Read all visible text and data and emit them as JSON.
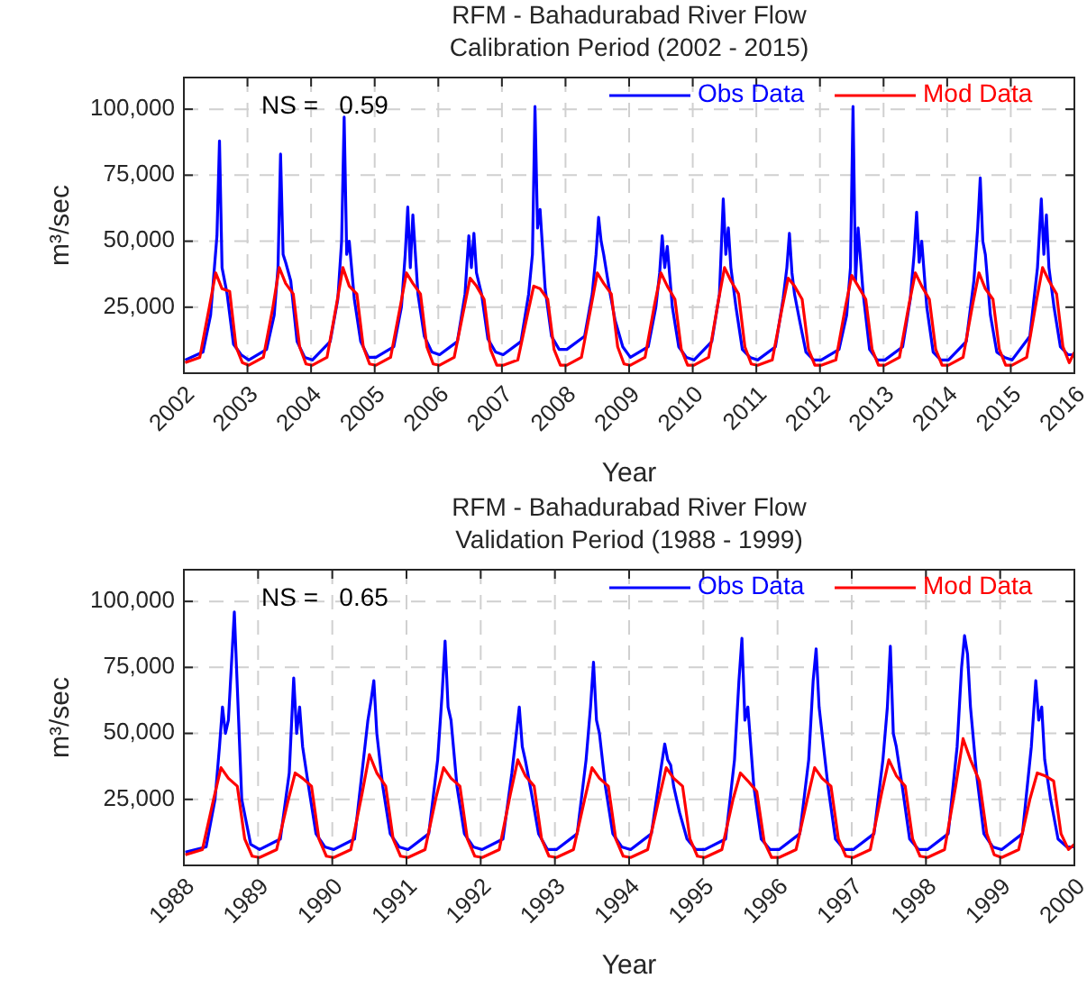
{
  "chart_data": [
    {
      "type": "line",
      "title": "RFM - Bahadurabad River Flow",
      "subtitle": "Calibration Period (2002 - 2015)",
      "xlabel": "Year",
      "ylabel": "m³/sec",
      "annotations": [
        "NS =   0.59"
      ],
      "xlim": [
        2002,
        2016
      ],
      "xticks": [
        2002,
        2003,
        2004,
        2005,
        2006,
        2007,
        2008,
        2009,
        2010,
        2011,
        2012,
        2013,
        2014,
        2015,
        2016
      ],
      "ylim": [
        0,
        112000
      ],
      "yticks": [
        {
          "value": 25000,
          "label": "25,000"
        },
        {
          "value": 50000,
          "label": "50,000"
        },
        {
          "value": 75000,
          "label": "75,000"
        },
        {
          "value": 100000,
          "label": "100,000"
        }
      ],
      "grid": true,
      "legend": "top right",
      "line_style": "solid",
      "series": [
        {
          "name": "Obs Data",
          "color": "#0000ff",
          "x": [
            2002.02,
            2002.3,
            2002.42,
            2002.48,
            2002.52,
            2002.56,
            2002.6,
            2002.68,
            2002.78,
            2002.9,
            2003.02,
            2003.3,
            2003.42,
            2003.48,
            2003.52,
            2003.56,
            2003.6,
            2003.68,
            2003.78,
            2003.9,
            2004.02,
            2004.3,
            2004.42,
            2004.48,
            2004.52,
            2004.56,
            2004.6,
            2004.68,
            2004.78,
            2004.9,
            2005.02,
            2005.3,
            2005.42,
            2005.48,
            2005.52,
            2005.56,
            2005.6,
            2005.68,
            2005.78,
            2005.9,
            2006.02,
            2006.3,
            2006.42,
            2006.48,
            2006.52,
            2006.56,
            2006.6,
            2006.68,
            2006.78,
            2006.9,
            2007.02,
            2007.3,
            2007.42,
            2007.48,
            2007.52,
            2007.56,
            2007.6,
            2007.68,
            2007.78,
            2007.9,
            2008.02,
            2008.3,
            2008.42,
            2008.48,
            2008.52,
            2008.56,
            2008.6,
            2008.68,
            2008.78,
            2008.9,
            2009.02,
            2009.3,
            2009.42,
            2009.48,
            2009.52,
            2009.56,
            2009.6,
            2009.68,
            2009.78,
            2009.9,
            2010.02,
            2010.3,
            2010.42,
            2010.48,
            2010.52,
            2010.56,
            2010.6,
            2010.68,
            2010.78,
            2010.9,
            2011.02,
            2011.3,
            2011.42,
            2011.48,
            2011.52,
            2011.56,
            2011.6,
            2011.68,
            2011.78,
            2011.9,
            2012.02,
            2012.3,
            2012.42,
            2012.48,
            2012.52,
            2012.56,
            2012.6,
            2012.68,
            2012.78,
            2012.9,
            2013.02,
            2013.3,
            2013.42,
            2013.48,
            2013.52,
            2013.56,
            2013.6,
            2013.68,
            2013.78,
            2013.9,
            2014.02,
            2014.3,
            2014.42,
            2014.48,
            2014.52,
            2014.56,
            2014.6,
            2014.68,
            2014.78,
            2014.9,
            2015.02,
            2015.3,
            2015.42,
            2015.48,
            2015.52,
            2015.56,
            2015.6,
            2015.68,
            2015.78,
            2015.9,
            2016
          ],
          "values": [
            5000,
            8000,
            22000,
            40000,
            52000,
            88000,
            40000,
            30000,
            11000,
            7000,
            5000,
            9000,
            22000,
            40000,
            83000,
            45000,
            42000,
            35000,
            12000,
            6000,
            5000,
            12000,
            28000,
            50000,
            97000,
            45000,
            50000,
            28000,
            12000,
            6000,
            6000,
            10000,
            25000,
            45000,
            63000,
            40000,
            60000,
            30000,
            14000,
            8000,
            7000,
            12000,
            30000,
            52000,
            40000,
            53000,
            38000,
            30000,
            13000,
            8000,
            7000,
            12000,
            30000,
            45000,
            101000,
            55000,
            62000,
            32000,
            14000,
            9000,
            9000,
            14000,
            30000,
            45000,
            59000,
            50000,
            45000,
            33000,
            20000,
            10000,
            6000,
            10000,
            25000,
            38000,
            52000,
            40000,
            48000,
            25000,
            10000,
            6000,
            5000,
            12000,
            30000,
            66000,
            45000,
            55000,
            40000,
            25000,
            9000,
            6000,
            5000,
            10000,
            28000,
            40000,
            53000,
            38000,
            30000,
            20000,
            8000,
            5000,
            5000,
            9000,
            22000,
            40000,
            101000,
            35000,
            55000,
            30000,
            9000,
            5000,
            5000,
            10000,
            28000,
            45000,
            61000,
            42000,
            50000,
            25000,
            8000,
            5000,
            5000,
            12000,
            35000,
            55000,
            74000,
            50000,
            45000,
            22000,
            8000,
            6000,
            5000,
            14000,
            40000,
            66000,
            45000,
            60000,
            40000,
            25000,
            10000,
            7000,
            7000
          ]
        },
        {
          "name": "Mod Data",
          "color": "#ff0000",
          "x": [
            2002.02,
            2002.25,
            2002.4,
            2002.5,
            2002.6,
            2002.72,
            2002.82,
            2002.92,
            2003.02,
            2003.25,
            2003.4,
            2003.5,
            2003.6,
            2003.72,
            2003.82,
            2003.92,
            2004.02,
            2004.25,
            2004.4,
            2004.5,
            2004.6,
            2004.72,
            2004.82,
            2004.92,
            2005.02,
            2005.25,
            2005.4,
            2005.5,
            2005.6,
            2005.72,
            2005.82,
            2005.92,
            2006.02,
            2006.25,
            2006.4,
            2006.5,
            2006.6,
            2006.72,
            2006.82,
            2006.92,
            2007.02,
            2007.25,
            2007.4,
            2007.5,
            2007.6,
            2007.72,
            2007.82,
            2007.92,
            2008.02,
            2008.25,
            2008.4,
            2008.5,
            2008.6,
            2008.72,
            2008.82,
            2008.92,
            2009.02,
            2009.25,
            2009.4,
            2009.5,
            2009.6,
            2009.72,
            2009.82,
            2009.92,
            2010.02,
            2010.25,
            2010.4,
            2010.5,
            2010.6,
            2010.72,
            2010.82,
            2010.92,
            2011.02,
            2011.25,
            2011.4,
            2011.5,
            2011.6,
            2011.72,
            2011.82,
            2011.92,
            2012.02,
            2012.25,
            2012.4,
            2012.5,
            2012.6,
            2012.72,
            2012.82,
            2012.92,
            2013.02,
            2013.25,
            2013.4,
            2013.5,
            2013.6,
            2013.72,
            2013.82,
            2013.92,
            2014.02,
            2014.25,
            2014.4,
            2014.5,
            2014.6,
            2014.72,
            2014.82,
            2014.92,
            2015.02,
            2015.25,
            2015.4,
            2015.5,
            2015.6,
            2015.72,
            2015.82,
            2015.92,
            2016
          ],
          "values": [
            4000,
            6000,
            25000,
            38000,
            32000,
            31000,
            10000,
            4000,
            3000,
            6000,
            25000,
            40000,
            34000,
            30000,
            10000,
            3500,
            3000,
            6000,
            26000,
            40000,
            33000,
            30000,
            10000,
            3500,
            3000,
            6000,
            25000,
            38000,
            34000,
            30000,
            10000,
            3500,
            3000,
            6000,
            24000,
            36000,
            33000,
            28000,
            9000,
            3000,
            3000,
            5000,
            22000,
            33000,
            32000,
            28000,
            9000,
            3000,
            3000,
            6000,
            25000,
            38000,
            34000,
            30000,
            10000,
            3500,
            3000,
            6000,
            26000,
            38000,
            33000,
            28000,
            9000,
            3000,
            3000,
            6000,
            27000,
            40000,
            35000,
            30000,
            10000,
            3500,
            3000,
            5000,
            24000,
            36000,
            33000,
            28000,
            9000,
            3000,
            3000,
            5000,
            25000,
            37000,
            33000,
            28000,
            9000,
            3000,
            3000,
            6000,
            26000,
            38000,
            33000,
            28000,
            9000,
            3000,
            3000,
            6000,
            26000,
            38000,
            32000,
            28000,
            9000,
            3000,
            3000,
            6000,
            27000,
            40000,
            35000,
            30000,
            10000,
            4000,
            8000
          ]
        }
      ]
    },
    {
      "type": "line",
      "title": "RFM - Bahadurabad River Flow",
      "subtitle": "Validation Period (1988 - 1999)",
      "xlabel": "Year",
      "ylabel": "m³/sec",
      "annotations": [
        "NS =   0.65"
      ],
      "xlim": [
        1988,
        2000
      ],
      "xticks": [
        1988,
        1989,
        1990,
        1991,
        1992,
        1993,
        1994,
        1995,
        1996,
        1997,
        1998,
        1999,
        2000
      ],
      "ylim": [
        0,
        112000
      ],
      "yticks": [
        {
          "value": 25000,
          "label": "25,000"
        },
        {
          "value": 50000,
          "label": "50,000"
        },
        {
          "value": 75000,
          "label": "75,000"
        },
        {
          "value": 100000,
          "label": "100,000"
        }
      ],
      "grid": true,
      "legend": "top right",
      "line_style": "solid",
      "series": [
        {
          "name": "Obs Data",
          "color": "#0000ff",
          "x": [
            1988.02,
            1988.3,
            1988.42,
            1988.48,
            1988.52,
            1988.56,
            1988.6,
            1988.68,
            1988.78,
            1988.9,
            1989.02,
            1989.3,
            1989.42,
            1989.48,
            1989.52,
            1989.56,
            1989.6,
            1989.68,
            1989.78,
            1989.9,
            1990.02,
            1990.3,
            1990.42,
            1990.48,
            1990.52,
            1990.56,
            1990.6,
            1990.68,
            1990.78,
            1990.9,
            1991.02,
            1991.3,
            1991.42,
            1991.48,
            1991.52,
            1991.56,
            1991.6,
            1991.68,
            1991.78,
            1991.9,
            1992.02,
            1992.3,
            1992.42,
            1992.48,
            1992.52,
            1992.56,
            1992.6,
            1992.68,
            1992.78,
            1992.9,
            1993.02,
            1993.3,
            1993.42,
            1993.48,
            1993.52,
            1993.56,
            1993.6,
            1993.68,
            1993.78,
            1993.9,
            1994.02,
            1994.3,
            1994.42,
            1994.48,
            1994.52,
            1994.56,
            1994.6,
            1994.68,
            1994.78,
            1994.9,
            1995.02,
            1995.3,
            1995.42,
            1995.48,
            1995.52,
            1995.56,
            1995.6,
            1995.68,
            1995.78,
            1995.9,
            1996.02,
            1996.3,
            1996.42,
            1996.48,
            1996.52,
            1996.56,
            1996.6,
            1996.68,
            1996.78,
            1996.9,
            1997.02,
            1997.3,
            1997.42,
            1997.48,
            1997.52,
            1997.56,
            1997.6,
            1997.68,
            1997.78,
            1997.9,
            1998.02,
            1998.3,
            1998.42,
            1998.48,
            1998.52,
            1998.56,
            1998.6,
            1998.68,
            1998.78,
            1998.9,
            1999.02,
            1999.3,
            1999.42,
            1999.48,
            1999.52,
            1999.56,
            1999.6,
            1999.68,
            1999.78,
            1999.9,
            2000
          ],
          "values": [
            5000,
            7000,
            25000,
            45000,
            60000,
            50000,
            55000,
            96000,
            25000,
            8000,
            6000,
            10000,
            35000,
            71000,
            50000,
            60000,
            45000,
            30000,
            12000,
            7000,
            6000,
            10000,
            40000,
            55000,
            62000,
            70000,
            50000,
            30000,
            12000,
            7000,
            6000,
            12000,
            40000,
            65000,
            85000,
            60000,
            55000,
            30000,
            12000,
            7000,
            6000,
            10000,
            35000,
            50000,
            60000,
            45000,
            40000,
            28000,
            12000,
            6000,
            6000,
            12000,
            40000,
            60000,
            77000,
            55000,
            50000,
            30000,
            12000,
            7000,
            6000,
            12000,
            35000,
            46000,
            40000,
            38000,
            30000,
            20000,
            10000,
            6000,
            6000,
            10000,
            40000,
            70000,
            86000,
            55000,
            60000,
            30000,
            10000,
            6000,
            6000,
            12000,
            40000,
            70000,
            82000,
            60000,
            50000,
            30000,
            10000,
            6000,
            6000,
            12000,
            40000,
            60000,
            83000,
            50000,
            45000,
            30000,
            10000,
            6000,
            6000,
            12000,
            45000,
            75000,
            87000,
            80000,
            60000,
            35000,
            12000,
            7000,
            6000,
            12000,
            45000,
            70000,
            55000,
            60000,
            40000,
            25000,
            10000,
            7000,
            7000
          ]
        },
        {
          "name": "Mod Data",
          "color": "#ff0000",
          "x": [
            1988.02,
            1988.25,
            1988.4,
            1988.5,
            1988.6,
            1988.72,
            1988.82,
            1988.92,
            1989.02,
            1989.25,
            1989.4,
            1989.5,
            1989.6,
            1989.72,
            1989.82,
            1989.92,
            1990.02,
            1990.25,
            1990.4,
            1990.5,
            1990.6,
            1990.72,
            1990.82,
            1990.92,
            1991.02,
            1991.25,
            1991.4,
            1991.5,
            1991.6,
            1991.72,
            1991.82,
            1991.92,
            1992.02,
            1992.25,
            1992.4,
            1992.5,
            1992.6,
            1992.72,
            1992.82,
            1992.92,
            1993.02,
            1993.25,
            1993.4,
            1993.5,
            1993.6,
            1993.72,
            1993.82,
            1993.92,
            1994.02,
            1994.25,
            1994.4,
            1994.5,
            1994.6,
            1994.72,
            1994.82,
            1994.92,
            1995.02,
            1995.25,
            1995.4,
            1995.5,
            1995.6,
            1995.72,
            1995.82,
            1995.92,
            1996.02,
            1996.25,
            1996.4,
            1996.5,
            1996.6,
            1996.72,
            1996.82,
            1996.92,
            1997.02,
            1997.25,
            1997.4,
            1997.5,
            1997.6,
            1997.72,
            1997.82,
            1997.92,
            1998.02,
            1998.25,
            1998.4,
            1998.5,
            1998.6,
            1998.72,
            1998.82,
            1998.92,
            1999.02,
            1999.25,
            1999.4,
            1999.5,
            1999.6,
            1999.72,
            1999.82,
            1999.92,
            2000
          ],
          "values": [
            4000,
            6000,
            25000,
            37000,
            33000,
            30000,
            10000,
            3500,
            3000,
            6000,
            24000,
            35000,
            33000,
            30000,
            10000,
            3500,
            3000,
            6000,
            27000,
            42000,
            35000,
            30000,
            10000,
            3500,
            3000,
            6000,
            26000,
            37000,
            33000,
            30000,
            10000,
            3500,
            3000,
            6000,
            27000,
            40000,
            34000,
            30000,
            10000,
            3500,
            3000,
            6000,
            25000,
            37000,
            33000,
            30000,
            10000,
            3500,
            3000,
            6000,
            25000,
            37000,
            33000,
            30000,
            10000,
            3500,
            3000,
            6000,
            25000,
            35000,
            32000,
            28000,
            9000,
            3000,
            3000,
            6000,
            25000,
            37000,
            33000,
            30000,
            10000,
            3500,
            3000,
            6000,
            27000,
            40000,
            34000,
            30000,
            10000,
            3500,
            3000,
            6000,
            30000,
            48000,
            40000,
            32000,
            12000,
            4000,
            3000,
            6000,
            25000,
            35000,
            34000,
            32000,
            12000,
            6000,
            8000
          ]
        }
      ]
    }
  ]
}
